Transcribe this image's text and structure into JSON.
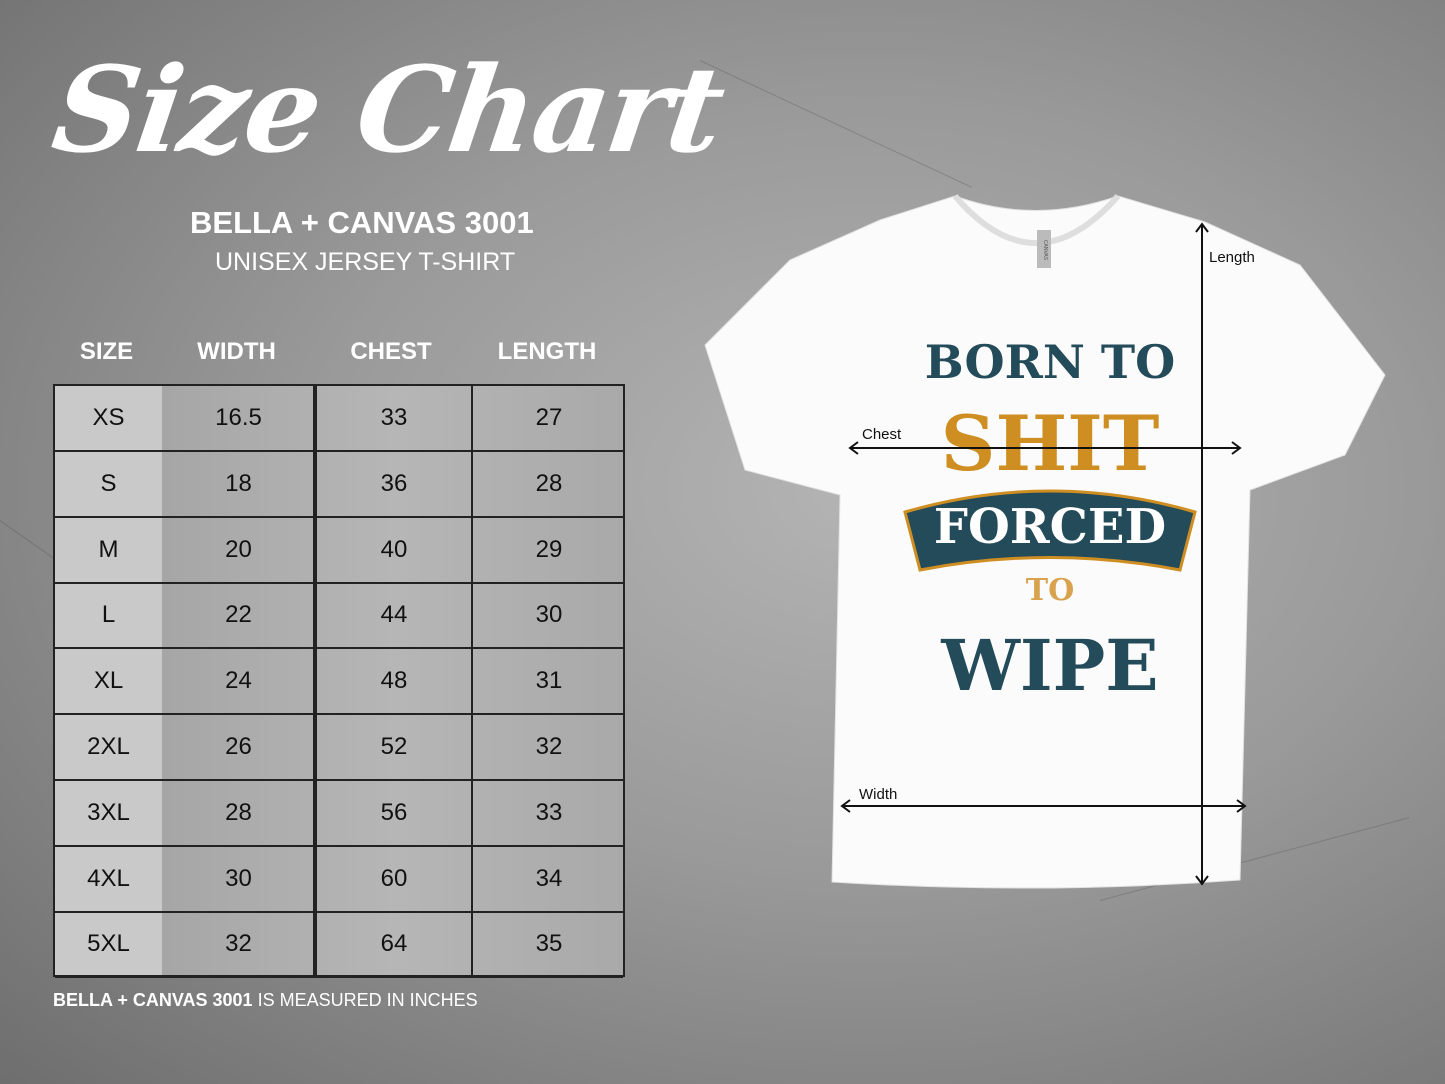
{
  "header": {
    "title": "Size Chart",
    "brand": "BELLA + CANVAS 3001",
    "subtitle": "UNISEX JERSEY T-SHIRT"
  },
  "table": {
    "columns": [
      "SIZE",
      "WIDTH",
      "CHEST",
      "LENGTH"
    ],
    "rows": [
      [
        "XS",
        "16.5",
        "33",
        "27"
      ],
      [
        "S",
        "18",
        "36",
        "28"
      ],
      [
        "M",
        "20",
        "40",
        "29"
      ],
      [
        "L",
        "22",
        "44",
        "30"
      ],
      [
        "XL",
        "24",
        "48",
        "31"
      ],
      [
        "2XL",
        "26",
        "52",
        "32"
      ],
      [
        "3XL",
        "28",
        "56",
        "33"
      ],
      [
        "4XL",
        "30",
        "60",
        "34"
      ],
      [
        "5XL",
        "32",
        "64",
        "35"
      ]
    ]
  },
  "footer": {
    "brand": "BELLA + CANVAS 3001",
    "note": " IS MEASURED IN INCHES"
  },
  "shirt": {
    "label": "CANVAS",
    "design": {
      "line1": "BORN TO",
      "line2": "SHIT",
      "line3": "FORCED",
      "line4": "TO",
      "line5": "WIPE"
    },
    "measurements": {
      "length": "Length",
      "chest": "Chest",
      "width": "Width"
    },
    "colors": {
      "teal": "#244b5a",
      "gold": "#cf8e22",
      "shirt": "#fbfbfb"
    }
  }
}
